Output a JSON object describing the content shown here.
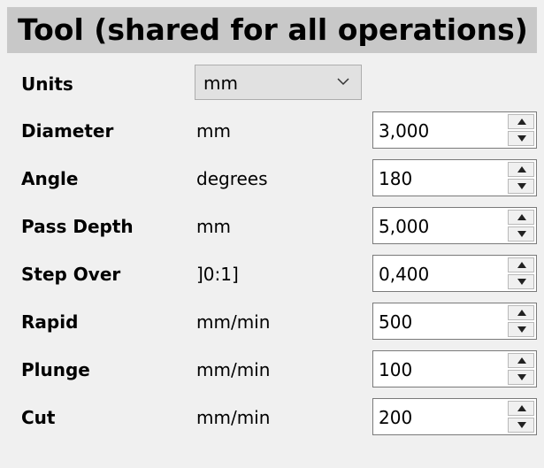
{
  "panel": {
    "title": "Tool (shared for all operations)"
  },
  "units_row": {
    "label": "Units",
    "selected": "mm",
    "icon": "chevron-down-icon"
  },
  "rows": [
    {
      "label": "Diameter",
      "unit": "mm",
      "value": "3,000"
    },
    {
      "label": "Angle",
      "unit": "degrees",
      "value": "180"
    },
    {
      "label": "Pass Depth",
      "unit": "mm",
      "value": "5,000"
    },
    {
      "label": "Step Over",
      "unit": "]0:1]",
      "value": "0,400"
    },
    {
      "label": "Rapid",
      "unit": "mm/min",
      "value": "500"
    },
    {
      "label": "Plunge",
      "unit": "mm/min",
      "value": "100"
    },
    {
      "label": "Cut",
      "unit": "mm/min",
      "value": "200"
    }
  ],
  "colors": {
    "background": "#f0f0f0",
    "header": "#c8c8c8",
    "input_border": "#7a7a7a",
    "select_bg": "#e1e1e1"
  }
}
